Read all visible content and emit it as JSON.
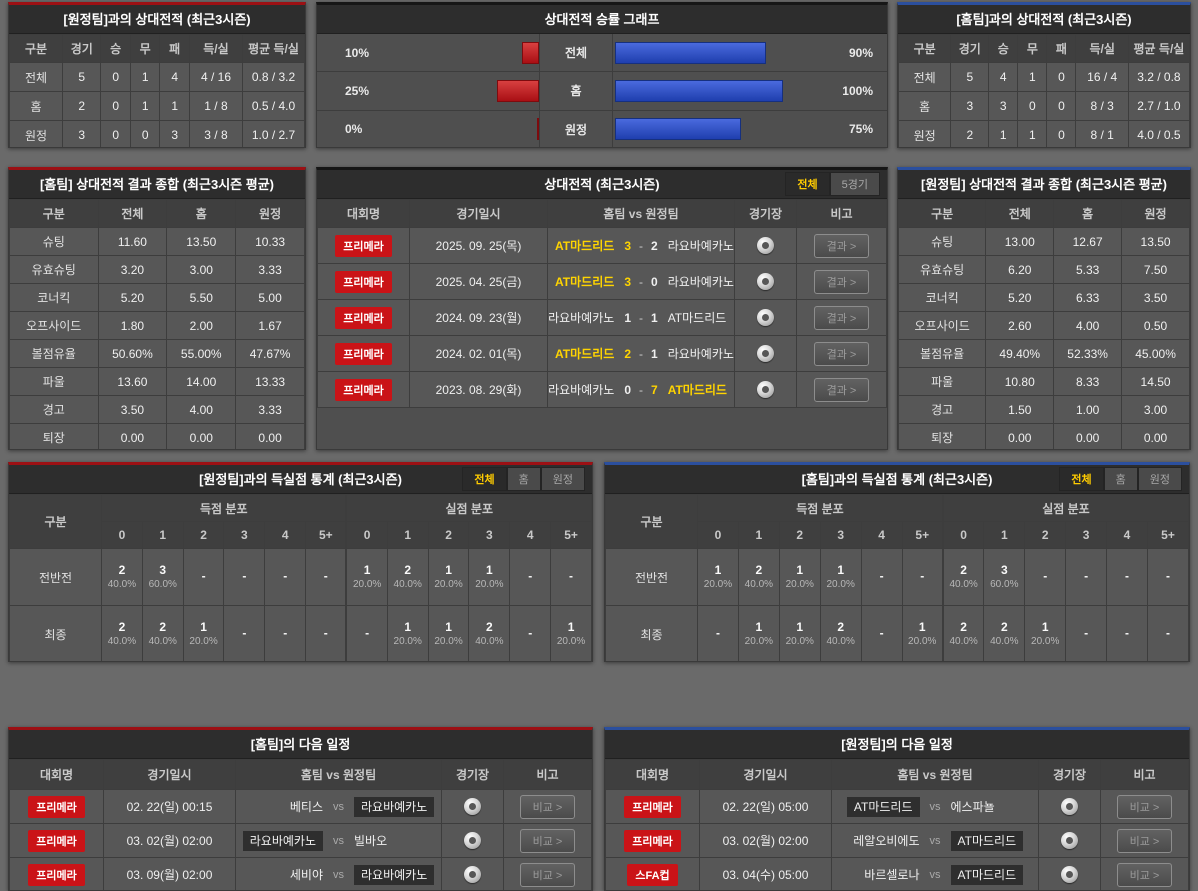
{
  "colors": {
    "accent_red": "#9c1014",
    "accent_blue": "#2b4f9e",
    "accent_dark": "#161616",
    "bar_red": "#c0262b",
    "bar_blue": "#2b52c8",
    "win_yellow": "#ffd400",
    "badge_red": "#ca1317"
  },
  "chart_data": {
    "type": "bar",
    "orientation": "horizontal-diverging",
    "title": "상대전적 승률 그래프",
    "categories": [
      "전체",
      "홈",
      "원정"
    ],
    "series": [
      {
        "name": "좌측(적색) 승률",
        "side": "left",
        "color": "#c0262b",
        "values": [
          10,
          25,
          0
        ],
        "labels": [
          "10%",
          "25%",
          "0%"
        ]
      },
      {
        "name": "우측(청색) 승률",
        "side": "right",
        "color": "#2b52c8",
        "values": [
          90,
          100,
          75
        ],
        "labels": [
          "90%",
          "100%",
          "75%"
        ]
      }
    ],
    "xlim": [
      0,
      100
    ],
    "grid": false,
    "legend": "none"
  },
  "record_away": {
    "title": "[원정팀]과의 상대전적 (최근3시즌)",
    "columns": [
      "구분",
      "경기",
      "승",
      "무",
      "패",
      "득/실",
      "평균 득/실"
    ],
    "rows": [
      {
        "label": "전체",
        "games": "5",
        "w": "0",
        "d": "1",
        "l": "4",
        "gf_ga": "4 / 16",
        "avg": "0.8 / 3.2"
      },
      {
        "label": "홈",
        "games": "2",
        "w": "0",
        "d": "1",
        "l": "1",
        "gf_ga": "1 / 8",
        "avg": "0.5 / 4.0"
      },
      {
        "label": "원정",
        "games": "3",
        "w": "0",
        "d": "0",
        "l": "3",
        "gf_ga": "3 / 8",
        "avg": "1.0 / 2.7"
      }
    ]
  },
  "record_home": {
    "title": "[홈팀]과의 상대전적 (최근3시즌)",
    "columns": [
      "구분",
      "경기",
      "승",
      "무",
      "패",
      "득/실",
      "평균 득/실"
    ],
    "rows": [
      {
        "label": "전체",
        "games": "5",
        "w": "4",
        "d": "1",
        "l": "0",
        "gf_ga": "16 / 4",
        "avg": "3.2 / 0.8"
      },
      {
        "label": "홈",
        "games": "3",
        "w": "3",
        "d": "0",
        "l": "0",
        "gf_ga": "8 / 3",
        "avg": "2.7 / 1.0"
      },
      {
        "label": "원정",
        "games": "2",
        "w": "1",
        "d": "1",
        "l": "0",
        "gf_ga": "8 / 1",
        "avg": "4.0 / 0.5"
      }
    ]
  },
  "summary_home": {
    "title": "[홈팀] 상대전적 결과 종합 (최근3시즌 평균)",
    "columns": [
      "구분",
      "전체",
      "홈",
      "원정"
    ],
    "rows": [
      {
        "label": "슈팅",
        "all": "11.60",
        "home": "13.50",
        "away": "10.33"
      },
      {
        "label": "유효슈팅",
        "all": "3.20",
        "home": "3.00",
        "away": "3.33"
      },
      {
        "label": "코너킥",
        "all": "5.20",
        "home": "5.50",
        "away": "5.00"
      },
      {
        "label": "오프사이드",
        "all": "1.80",
        "home": "2.00",
        "away": "1.67"
      },
      {
        "label": "볼점유율",
        "all": "50.60%",
        "home": "55.00%",
        "away": "47.67%"
      },
      {
        "label": "파울",
        "all": "13.60",
        "home": "14.00",
        "away": "13.33"
      },
      {
        "label": "경고",
        "all": "3.50",
        "home": "4.00",
        "away": "3.33"
      },
      {
        "label": "퇴장",
        "all": "0.00",
        "home": "0.00",
        "away": "0.00"
      }
    ]
  },
  "summary_away": {
    "title": "[원정팀] 상대전적 결과 종합 (최근3시즌 평균)",
    "columns": [
      "구분",
      "전체",
      "홈",
      "원정"
    ],
    "rows": [
      {
        "label": "슈팅",
        "all": "13.00",
        "home": "12.67",
        "away": "13.50"
      },
      {
        "label": "유효슈팅",
        "all": "6.20",
        "home": "5.33",
        "away": "7.50"
      },
      {
        "label": "코너킥",
        "all": "5.20",
        "home": "6.33",
        "away": "3.50"
      },
      {
        "label": "오프사이드",
        "all": "2.60",
        "home": "4.00",
        "away": "0.50"
      },
      {
        "label": "볼점유율",
        "all": "49.40%",
        "home": "52.33%",
        "away": "45.00%"
      },
      {
        "label": "파울",
        "all": "10.80",
        "home": "8.33",
        "away": "14.50"
      },
      {
        "label": "경고",
        "all": "1.50",
        "home": "1.00",
        "away": "3.00"
      },
      {
        "label": "퇴장",
        "all": "0.00",
        "home": "0.00",
        "away": "0.00"
      }
    ]
  },
  "h2h": {
    "title": "상대전적 (최근3시즌)",
    "tabs": [
      {
        "label": "전체",
        "active": true
      },
      {
        "label": "5경기",
        "active": false
      }
    ],
    "columns": [
      "대회명",
      "경기일시",
      "홈팀 vs 원정팀",
      "경기장",
      "비고"
    ],
    "result_label": "결과 >",
    "rows": [
      {
        "league": "프리메라",
        "date": "2025. 09. 25(목)",
        "home": "AT마드리드",
        "hs": "3",
        "as": "2",
        "away": "라요바예카노",
        "home_win": true,
        "away_win": false
      },
      {
        "league": "프리메라",
        "date": "2025. 04. 25(금)",
        "home": "AT마드리드",
        "hs": "3",
        "as": "0",
        "away": "라요바예카노",
        "home_win": true,
        "away_win": false
      },
      {
        "league": "프리메라",
        "date": "2024. 09. 23(월)",
        "home": "라요바예카노",
        "hs": "1",
        "as": "1",
        "away": "AT마드리드",
        "home_win": false,
        "away_win": false
      },
      {
        "league": "프리메라",
        "date": "2024. 02. 01(목)",
        "home": "AT마드리드",
        "hs": "2",
        "as": "1",
        "away": "라요바예카노",
        "home_win": true,
        "away_win": false
      },
      {
        "league": "프리메라",
        "date": "2023. 08. 29(화)",
        "home": "라요바예카노",
        "hs": "0",
        "as": "7",
        "away": "AT마드리드",
        "home_win": false,
        "away_win": true
      }
    ]
  },
  "goals_vs_away": {
    "title": "[원정팀]과의 득실점 통계 (최근3시즌)",
    "tabs": [
      {
        "label": "전체",
        "active": true
      },
      {
        "label": "홈",
        "active": false
      },
      {
        "label": "원정",
        "active": false
      }
    ],
    "col_label": "구분",
    "group_headers": [
      "득점 분포",
      "실점 분포"
    ],
    "score_cols": [
      "0",
      "1",
      "2",
      "3",
      "4",
      "5+"
    ],
    "rows": [
      {
        "label": "전반전",
        "score": [
          {
            "n": "2",
            "p": "40.0%"
          },
          {
            "n": "3",
            "p": "60.0%"
          },
          {
            "n": "-"
          },
          {
            "n": "-"
          },
          {
            "n": "-"
          },
          {
            "n": "-"
          }
        ],
        "concede": [
          {
            "n": "1",
            "p": "20.0%"
          },
          {
            "n": "2",
            "p": "40.0%"
          },
          {
            "n": "1",
            "p": "20.0%"
          },
          {
            "n": "1",
            "p": "20.0%"
          },
          {
            "n": "-"
          },
          {
            "n": "-"
          }
        ]
      },
      {
        "label": "최종",
        "score": [
          {
            "n": "2",
            "p": "40.0%"
          },
          {
            "n": "2",
            "p": "40.0%"
          },
          {
            "n": "1",
            "p": "20.0%"
          },
          {
            "n": "-"
          },
          {
            "n": "-"
          },
          {
            "n": "-"
          }
        ],
        "concede": [
          {
            "n": "-"
          },
          {
            "n": "1",
            "p": "20.0%"
          },
          {
            "n": "1",
            "p": "20.0%"
          },
          {
            "n": "2",
            "p": "40.0%"
          },
          {
            "n": "-"
          },
          {
            "n": "1",
            "p": "20.0%"
          }
        ]
      }
    ]
  },
  "goals_vs_home": {
    "title": "[홈팀]과의 득실점 통계 (최근3시즌)",
    "tabs": [
      {
        "label": "전체",
        "active": true
      },
      {
        "label": "홈",
        "active": false
      },
      {
        "label": "원정",
        "active": false
      }
    ],
    "col_label": "구분",
    "group_headers": [
      "득점 분포",
      "실점 분포"
    ],
    "score_cols": [
      "0",
      "1",
      "2",
      "3",
      "4",
      "5+"
    ],
    "rows": [
      {
        "label": "전반전",
        "score": [
          {
            "n": "1",
            "p": "20.0%"
          },
          {
            "n": "2",
            "p": "40.0%"
          },
          {
            "n": "1",
            "p": "20.0%"
          },
          {
            "n": "1",
            "p": "20.0%"
          },
          {
            "n": "-"
          },
          {
            "n": "-"
          }
        ],
        "concede": [
          {
            "n": "2",
            "p": "40.0%"
          },
          {
            "n": "3",
            "p": "60.0%"
          },
          {
            "n": "-"
          },
          {
            "n": "-"
          },
          {
            "n": "-"
          },
          {
            "n": "-"
          }
        ]
      },
      {
        "label": "최종",
        "score": [
          {
            "n": "-"
          },
          {
            "n": "1",
            "p": "20.0%"
          },
          {
            "n": "1",
            "p": "20.0%"
          },
          {
            "n": "2",
            "p": "40.0%"
          },
          {
            "n": "-"
          },
          {
            "n": "1",
            "p": "20.0%"
          }
        ],
        "concede": [
          {
            "n": "2",
            "p": "40.0%"
          },
          {
            "n": "2",
            "p": "40.0%"
          },
          {
            "n": "1",
            "p": "20.0%"
          },
          {
            "n": "-"
          },
          {
            "n": "-"
          },
          {
            "n": "-"
          }
        ]
      }
    ]
  },
  "sched_home": {
    "title": "[홈팀]의 다음 일정",
    "columns": [
      "대회명",
      "경기일시",
      "홈팀 vs 원정팀",
      "경기장",
      "비고"
    ],
    "compare_label": "비교 >",
    "rows": [
      {
        "league": "프리메라",
        "date": "02. 22(일) 00:15",
        "home": "베티스",
        "away": "라요바예카노",
        "home_hl": false,
        "away_hl": true
      },
      {
        "league": "프리메라",
        "date": "03. 02(월) 02:00",
        "home": "라요바예카노",
        "away": "빌바오",
        "home_hl": true,
        "away_hl": false
      },
      {
        "league": "프리메라",
        "date": "03. 09(월) 02:00",
        "home": "세비야",
        "away": "라요바예카노",
        "home_hl": false,
        "away_hl": true
      }
    ]
  },
  "sched_away": {
    "title": "[원정팀]의 다음 일정",
    "columns": [
      "대회명",
      "경기일시",
      "홈팀 vs 원정팀",
      "경기장",
      "비고"
    ],
    "compare_label": "비교 >",
    "rows": [
      {
        "league": "프리메라",
        "date": "02. 22(일) 05:00",
        "home": "AT마드리드",
        "away": "에스파뇰",
        "home_hl": true,
        "away_hl": false
      },
      {
        "league": "프리메라",
        "date": "03. 02(월) 02:00",
        "home": "레알오비에도",
        "away": "AT마드리드",
        "home_hl": false,
        "away_hl": true
      },
      {
        "league": "스FA컵",
        "date": "03. 04(수) 05:00",
        "home": "바르셀로나",
        "away": "AT마드리드",
        "home_hl": false,
        "away_hl": true
      }
    ]
  },
  "labels": {
    "vs": "vs"
  }
}
